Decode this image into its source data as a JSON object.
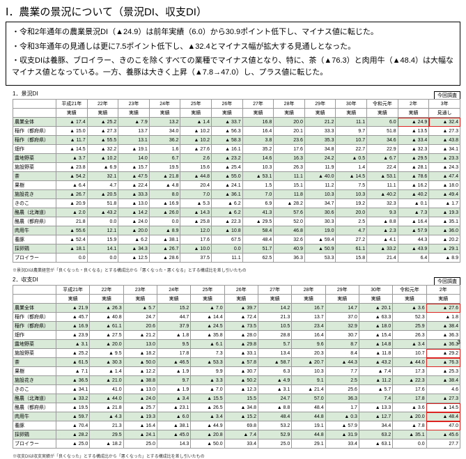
{
  "title": "Ⅰ．農業の景況について（景況DI、収支DI）",
  "bullets": [
    "・令和2年通年の農業景況DI（▲24.9）は前年実績（6.0）から30.9ポイント低下し、マイナス値に転じた。",
    "・令和3年通年の見通しは更に7.5ポイント低下し、▲32.4とマイナス幅が拡大する見通しとなった。",
    "・収支DIは養豚、ブロイラー、きのこを除くすべての業種でマイナス値となり、特に、茶（▲76.3）と肉用牛（▲48.4）は大幅なマイナス値となっている。一方、養豚は大きく上昇（▲7.8→47.0）し、プラス値に転じた。"
  ],
  "survey_label": "今回調査",
  "table1": {
    "label": "1．景況DI",
    "head1": [
      "",
      "平成21年",
      "22年",
      "23年",
      "24年",
      "25年",
      "26年",
      "27年",
      "28年",
      "29年",
      "30年",
      "令和元年",
      "2年",
      "3年"
    ],
    "head2": [
      "",
      "実績",
      "実績",
      "実績",
      "実績",
      "実績",
      "実績",
      "実績",
      "実績",
      "実績",
      "実績",
      "実績",
      "実績",
      "見通し"
    ],
    "rows": [
      {
        "name": "農業全体",
        "v": [
          "▲ 17.4",
          "▲ 25.2",
          "▲ 7.9",
          "13.2",
          "▲ 1.4",
          "▲ 33.7",
          "16.8",
          "20.0",
          "21.2",
          "11.1",
          "6.0",
          "▲ 24.9",
          "▲ 32.4"
        ],
        "z": 1,
        "hl": [
          12,
          13
        ]
      },
      {
        "name": "稲作（都府県）",
        "v": [
          "▲ 15.0",
          "▲ 27.3",
          "13.7",
          "34.0",
          "▲ 10.2",
          "▲ 56.3",
          "16.4",
          "20.1",
          "33.3",
          "9.7",
          "51.8",
          "▲ 13.5",
          "▲ 27.3"
        ]
      },
      {
        "name": "稲作（都府県）",
        "v": [
          "▲ 11.7",
          "▲ 55.5",
          "13.1",
          "36.2",
          "▲ 10.2",
          "▲ 58.3",
          "3.8",
          "23.6",
          "35.3",
          "10.7",
          "34.6",
          "▲ 33.4",
          "▲ 43.8"
        ],
        "z": 1
      },
      {
        "name": "畑作",
        "v": [
          "▲ 14.5",
          "▲ 32.2",
          "▲ 19.1",
          "1.6",
          "▲ 27.6",
          "▲ 16.1",
          "35.2",
          "17.6",
          "34.8",
          "22.7",
          "22.9",
          "▲ 32.3",
          "▲ 34.1"
        ]
      },
      {
        "name": "露地野菜",
        "v": [
          "▲ 3.7",
          "▲ 10.2",
          "14.0",
          "6.7",
          "2.6",
          "▲ 23.2",
          "14.6",
          "16.3",
          "24.2",
          "▲ 0.5",
          "▲ 6.7",
          "▲ 29.5",
          "▲ 23.3"
        ],
        "z": 1
      },
      {
        "name": "施設野菜",
        "v": [
          "▲ 23.8",
          "▲ 6.9",
          "▲ 15.7",
          "19.5",
          "15.6",
          "▲ 25.4",
          "10.3",
          "26.3",
          "11.9",
          "1.4",
          "22.4",
          "▲ 28.1",
          "▲ 24.3"
        ]
      },
      {
        "name": "茶",
        "v": [
          "▲ 54.2",
          "32.1",
          "▲ 47.5",
          "▲ 21.8",
          "▲ 44.8",
          "▲ 55.0",
          "▲ 53.1",
          "11.1",
          "▲ 40.0",
          "▲ 14.5",
          "▲ 53.1",
          "▲ 78.6",
          "▲ 47.4"
        ],
        "z": 1
      },
      {
        "name": "果樹",
        "v": [
          "▲ 6.4",
          "4.7",
          "▲ 22.4",
          "▲ 4.8",
          "20.4",
          "▲ 24.1",
          "1.5",
          "15.1",
          "11.2",
          "7.5",
          "11.1",
          "▲ 16.2",
          "▲ 18.0"
        ]
      },
      {
        "name": "施設花き",
        "v": [
          "▲ 26.7",
          "▲ 20.5",
          "▲ 33.3",
          "8.0",
          "7.0",
          "▲ 36.1",
          "7.0",
          "11.8",
          "10.3",
          "10.3",
          "▲ 40.2",
          "▲ 40.2",
          "▲ 49.4"
        ],
        "z": 1
      },
      {
        "name": "きのこ",
        "v": [
          "▲ 20.9",
          "51.8",
          "▲ 13.0",
          "▲ 16.9",
          "▲ 5.3",
          "▲ 6.2",
          "6.9",
          "▲ 28.2",
          "34.7",
          "19.2",
          "32.3",
          "▲ 0.1",
          "▲ 1.7"
        ]
      },
      {
        "name": "酪農（北海道）",
        "v": [
          "▲ 2.0",
          "▲ 43.2",
          "▲ 14.2",
          "▲ 26.0",
          "▲ 14.3",
          "▲ 6.2",
          "41.3",
          "57.6",
          "30.6",
          "20.0",
          "9.3",
          "▲ 7.3",
          "▲ 19.3"
        ],
        "z": 1
      },
      {
        "name": "酪農（都府県）",
        "v": [
          "21.8",
          "0.0",
          "▲ 24.0",
          "0.0",
          "▲ 25.8",
          "▲ 22.3",
          "▲ 29.5",
          "52.0",
          "30.3",
          "2.5",
          "▲ 8.8",
          "▲ 16.4",
          "▲ 35.1"
        ]
      },
      {
        "name": "肉用牛",
        "v": [
          "▲ 55.6",
          "12.1",
          "▲ 20.0",
          "▲ 8.9",
          "12.0",
          "▲ 10.8",
          "58.4",
          "46.8",
          "19.0",
          "4.7",
          "▲ 2.3",
          "▲ 57.9",
          "▲ 36.0"
        ],
        "z": 1
      },
      {
        "name": "養豚",
        "v": [
          "▲ 52.4",
          "15.9",
          "▲ 6.2",
          "▲ 38.1",
          "17.6",
          "67.5",
          "48.4",
          "32.6",
          "▲ 59.4",
          "27.2",
          "▲ 4.1",
          "44.3",
          "▲ 20.2"
        ]
      },
      {
        "name": "採卵鶏",
        "v": [
          "▲ 18.1",
          "14.1",
          "▲ 34.3",
          "▲ 26.7",
          "▲ 10.0",
          "0.0",
          "51.7",
          "40.9",
          "▲ 50.9",
          "61.1",
          "▲ 33.2",
          "▲ 43.9",
          "▲ 29.1"
        ],
        "z": 1
      },
      {
        "name": "ブロイラー",
        "v": [
          "0.0",
          "0.0",
          "▲ 12.5",
          "▲ 28.6",
          "37.5",
          "11.1",
          "62.5",
          "36.3",
          "53.3",
          "15.8",
          "21.4",
          "6.4",
          "▲ 8.9"
        ]
      }
    ],
    "footnote": "※景況DIは農業経営が「良くなった・良くなる」とする構成比から「悪くなった・悪くなる」とする構成比を差し引いたもの"
  },
  "table2": {
    "label": "2．収支DI",
    "head1": [
      "",
      "平成21年",
      "22年",
      "23年",
      "24年",
      "25年",
      "26年",
      "27年",
      "28年",
      "29年",
      "30年",
      "令和元年",
      "2年"
    ],
    "head2": [
      "",
      "実績",
      "実績",
      "実績",
      "実績",
      "実績",
      "実績",
      "実績",
      "実績",
      "実績",
      "実績",
      "実績",
      "実績"
    ],
    "rows": [
      {
        "name": "農業全体",
        "v": [
          "▲ 21.9",
          "▲ 26.3",
          "▲ 5.7",
          "15.2",
          "▲ 7.0",
          "▲ 39.7",
          "14.2",
          "16.7",
          "14.7",
          "▲ 20.1",
          "▲ 3.6",
          "▲ 27.6"
        ],
        "z": 1,
        "hl": [
          12
        ]
      },
      {
        "name": "稲作（都府県）",
        "v": [
          "▲ 45.7",
          "▲ 40.8",
          "24.7",
          "44.7",
          "▲ 14.4",
          "▲ 72.4",
          "21.3",
          "13.7",
          "37.0",
          "▲ 63.3",
          "52.3",
          "▲ 1.8"
        ]
      },
      {
        "name": "稲作（都府県）",
        "v": [
          "▲ 16.9",
          "▲ 61.1",
          "20.6",
          "37.9",
          "▲ 24.5",
          "▲ 73.5",
          "10.5",
          "23.4",
          "32.9",
          "▲ 18.0",
          "25.9",
          "▲ 38.4"
        ],
        "z": 1
      },
      {
        "name": "畑作",
        "v": [
          "▲ 23.9",
          "▲ 27.5",
          "▲ 21.2",
          "▲ 1.8",
          "▲ 35.8",
          "▲ 28.0",
          "28.8",
          "16.4",
          "30.7",
          "▲ 15.4",
          "26.3",
          "▲ 36.3"
        ]
      },
      {
        "name": "露地野菜",
        "v": [
          "▲ 3.1",
          "▲ 20.0",
          "13.0",
          "9.5",
          "▲ 6.1",
          "▲ 29.8",
          "5.7",
          "9.6",
          "8.7",
          "▲ 14.8",
          "▲ 3.4",
          "▲ 36.3"
        ],
        "z": 1
      },
      {
        "name": "施設野菜",
        "v": [
          "▲ 25.2",
          "▲ 9.5",
          "▲ 18.2",
          "17.8",
          "7.3",
          "▲ 33.1",
          "13.4",
          "20.3",
          "8.4",
          "▲ 11.8",
          "10.7",
          "▲ 29.2"
        ],
        "hl": [
          12
        ]
      },
      {
        "name": "茶",
        "v": [
          "▲ 61.5",
          "▲ 30.3",
          "▲ 50.0",
          "▲ 46.5",
          "▲ 53.3",
          "▲ 57.8",
          "▲ 58.7",
          "▲ 20.7",
          "▲ 44.3",
          "▲ 43.2",
          "▲ 44.0",
          "▲ 76.3"
        ],
        "z": 1,
        "hl": [
          12
        ]
      },
      {
        "name": "果樹",
        "v": [
          "▲ 7.1",
          "▲ 1.4",
          "▲ 12.2",
          "▲ 1.9",
          "9.9",
          "▲ 30.7",
          "6.3",
          "10.3",
          "7.7",
          "▲ 7.4",
          "17.3",
          "▲ 25.3"
        ]
      },
      {
        "name": "施設花き",
        "v": [
          "▲ 36.5",
          "▲ 21.0",
          "▲ 38.8",
          "9.7",
          "▲ 3.3",
          "▲ 50.2",
          "▲ 4.9",
          "9.1",
          "2.5",
          "▲ 11.2",
          "▲ 22.3",
          "▲ 38.4"
        ],
        "z": 1
      },
      {
        "name": "きのこ",
        "v": [
          "▲ 34.1",
          "41.0",
          "▲ 13.0",
          "▲ 1.9",
          "▲ 7.0",
          "▲ 12.3",
          "▲ 3.1",
          "▲ 21.4",
          "25.6",
          "▲ 5.7",
          "17.6",
          "4.6"
        ]
      },
      {
        "name": "酪農（北海道）",
        "v": [
          "▲ 33.2",
          "▲ 44.0",
          "▲ 24.0",
          "▲ 3.4",
          "▲ 15.5",
          "15.5",
          "24.7",
          "57.0",
          "36.3",
          "7.4",
          "17.8",
          "▲ 27.3"
        ],
        "z": 1
      },
      {
        "name": "酪農（都府県）",
        "v": [
          "▲ 19.5",
          "▲ 21.8",
          "▲ 25.7",
          "▲ 23.1",
          "▲ 26.5",
          "▲ 34.8",
          "▲ 8.8",
          "48.4",
          "1.7",
          "▲ 13.3",
          "▲ 3.6",
          "▲ 14.5"
        ],
        "hl": [
          12
        ]
      },
      {
        "name": "肉用牛",
        "v": [
          "▲ 59.7",
          "▲ 4.3",
          "▲ 19.3",
          "▲ 6.0",
          "▲ 3.4",
          "▲ 15.2",
          "48.4",
          "44.8",
          "▲ 0.3",
          "▲ 12.7",
          "▲ 20.0",
          "▲ 48.4"
        ],
        "z": 1,
        "hl": [
          12
        ]
      },
      {
        "name": "養豚",
        "v": [
          "▲ 70.4",
          "21.3",
          "▲ 16.4",
          "▲ 38.1",
          "▲ 44.9",
          "69.8",
          "53.2",
          "19.1",
          "▲ 57.9",
          "34.4",
          "▲ 7.8",
          "47.0"
        ],
        "hl": [
          12
        ]
      },
      {
        "name": "採卵鶏",
        "v": [
          "▲ 28.2",
          "29.5",
          "▲ 24.1",
          "▲ 45.0",
          "▲ 20.8",
          "▲ 7.4",
          "52.9",
          "44.8",
          "▲ 31.9",
          "63.2",
          "▲ 35.1",
          "▲ 45.6"
        ],
        "z": 1
      },
      {
        "name": "ブロイラー",
        "v": [
          "▲ 25.0",
          "▲ 18.2",
          "25.0",
          "14.3",
          "▲ 50.0",
          "33.4",
          "25.0",
          "29.1",
          "33.4",
          "▲ 63.1",
          "0.0",
          "27.7"
        ]
      }
    ],
    "footnote": "※収支DIは収支実績が「良くなった」とする構成比から「悪くなった」とする構成比を差し引いたもの"
  },
  "pagenum": "3"
}
